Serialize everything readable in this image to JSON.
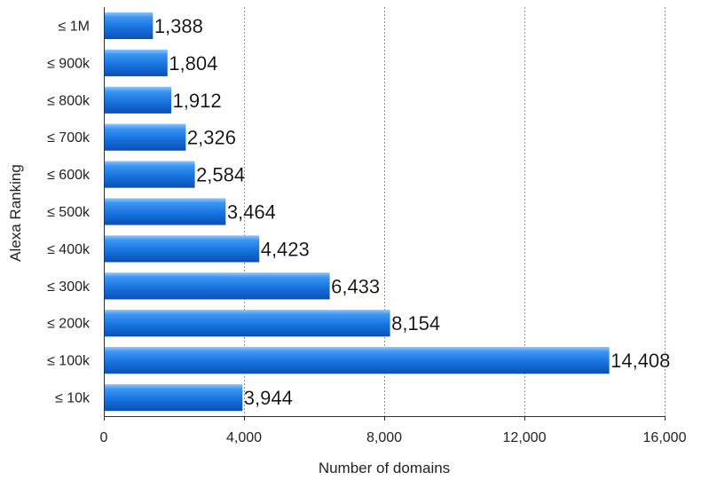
{
  "chart_data": {
    "type": "bar",
    "orientation": "horizontal",
    "categories": [
      "≤ 1M",
      "≤ 900k",
      "≤ 800k",
      "≤ 700k",
      "≤ 600k",
      "≤ 500k",
      "≤ 400k",
      "≤ 300k",
      "≤ 200k",
      "≤ 100k",
      "≤ 10k"
    ],
    "values": [
      1388,
      1804,
      1912,
      2326,
      2584,
      3464,
      4423,
      6433,
      8154,
      14408,
      3944
    ],
    "value_labels": [
      "1,388",
      "1,804",
      "1,912",
      "2,326",
      "2,584",
      "3,464",
      "4,423",
      "6,433",
      "8,154",
      "14,408",
      "3,944"
    ],
    "xlabel": "Number of domains",
    "ylabel": "Alexa Ranking",
    "xlim": [
      0,
      16000
    ],
    "x_ticks": [
      0,
      4000,
      8000,
      12000,
      16000
    ],
    "x_tick_labels": [
      "0",
      "4,000",
      "8,000",
      "12,000",
      "16,000"
    ],
    "grid": "vertical dashed",
    "bar_color": "#1874e0",
    "bar_color_light": "#6fb6ff",
    "bar_color_dark": "#0a4fb5"
  }
}
